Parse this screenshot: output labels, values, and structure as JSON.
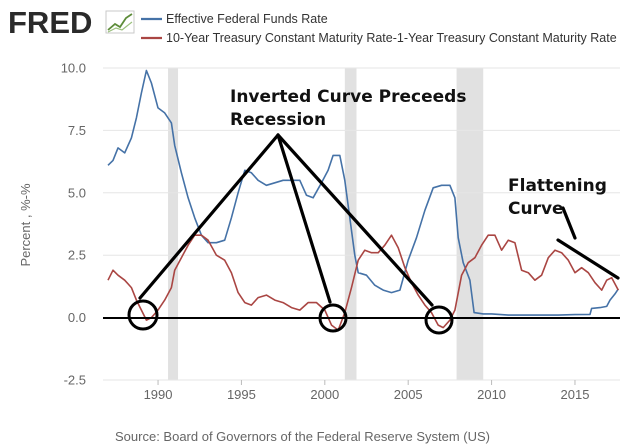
{
  "logo": {
    "text": "FRED"
  },
  "chart_data": {
    "type": "line",
    "title": "",
    "xlabel": "",
    "ylabel": "Percent , %-%",
    "xlim": [
      1986.7,
      2017.7
    ],
    "ylim": [
      -2.5,
      10.0
    ],
    "x_ticks": [
      1990,
      1995,
      2000,
      2005,
      2010,
      2015
    ],
    "y_ticks": [
      "10.0",
      "7.5",
      "5.0",
      "2.5",
      "0.0",
      "-2.5"
    ],
    "grid": "horizontal",
    "legend_placement": "top-left",
    "recessions": [
      [
        1990.6,
        1991.2
      ],
      [
        2001.2,
        2001.9
      ],
      [
        2007.9,
        2009.5
      ]
    ],
    "series": [
      {
        "name": "Effective Federal Funds Rate",
        "color": "#4572a7",
        "points": [
          [
            1987.0,
            6.1
          ],
          [
            1987.3,
            6.3
          ],
          [
            1987.6,
            6.8
          ],
          [
            1988.0,
            6.6
          ],
          [
            1988.4,
            7.2
          ],
          [
            1988.7,
            8.0
          ],
          [
            1989.0,
            9.0
          ],
          [
            1989.3,
            9.9
          ],
          [
            1989.6,
            9.4
          ],
          [
            1990.0,
            8.4
          ],
          [
            1990.4,
            8.2
          ],
          [
            1990.8,
            7.8
          ],
          [
            1991.0,
            6.9
          ],
          [
            1991.4,
            5.8
          ],
          [
            1991.8,
            4.8
          ],
          [
            1992.2,
            4.0
          ],
          [
            1992.6,
            3.3
          ],
          [
            1993.0,
            3.0
          ],
          [
            1993.5,
            3.0
          ],
          [
            1994.0,
            3.1
          ],
          [
            1994.4,
            4.0
          ],
          [
            1994.8,
            5.0
          ],
          [
            1995.2,
            5.9
          ],
          [
            1995.6,
            5.8
          ],
          [
            1996.0,
            5.5
          ],
          [
            1996.5,
            5.3
          ],
          [
            1997.0,
            5.4
          ],
          [
            1997.5,
            5.5
          ],
          [
            1998.0,
            5.5
          ],
          [
            1998.5,
            5.5
          ],
          [
            1998.9,
            4.9
          ],
          [
            1999.3,
            4.8
          ],
          [
            1999.8,
            5.4
          ],
          [
            2000.2,
            5.9
          ],
          [
            2000.5,
            6.5
          ],
          [
            2000.9,
            6.5
          ],
          [
            2001.2,
            5.5
          ],
          [
            2001.5,
            4.0
          ],
          [
            2001.8,
            2.5
          ],
          [
            2002.0,
            1.8
          ],
          [
            2002.5,
            1.7
          ],
          [
            2003.0,
            1.3
          ],
          [
            2003.5,
            1.1
          ],
          [
            2004.0,
            1.0
          ],
          [
            2004.5,
            1.1
          ],
          [
            2005.0,
            2.3
          ],
          [
            2005.5,
            3.2
          ],
          [
            2006.0,
            4.3
          ],
          [
            2006.5,
            5.2
          ],
          [
            2007.0,
            5.3
          ],
          [
            2007.5,
            5.3
          ],
          [
            2007.8,
            4.8
          ],
          [
            2008.0,
            3.2
          ],
          [
            2008.3,
            2.2
          ],
          [
            2008.7,
            1.5
          ],
          [
            2008.95,
            0.2
          ],
          [
            2009.5,
            0.15
          ],
          [
            2010.0,
            0.15
          ],
          [
            2011.0,
            0.1
          ],
          [
            2012.0,
            0.1
          ],
          [
            2013.0,
            0.1
          ],
          [
            2014.0,
            0.1
          ],
          [
            2015.0,
            0.12
          ],
          [
            2015.9,
            0.13
          ],
          [
            2016.0,
            0.37
          ],
          [
            2016.5,
            0.4
          ],
          [
            2016.9,
            0.45
          ],
          [
            2017.1,
            0.7
          ],
          [
            2017.4,
            0.95
          ],
          [
            2017.6,
            1.15
          ]
        ]
      },
      {
        "name": "10-Year Treasury Constant Maturity Rate-1-Year Treasury Constant Maturity Rate",
        "color": "#aa4643",
        "points": [
          [
            1987.0,
            1.5
          ],
          [
            1987.3,
            1.9
          ],
          [
            1987.6,
            1.7
          ],
          [
            1988.0,
            1.5
          ],
          [
            1988.4,
            1.2
          ],
          [
            1988.7,
            0.7
          ],
          [
            1989.0,
            0.3
          ],
          [
            1989.3,
            -0.1
          ],
          [
            1989.6,
            0.0
          ],
          [
            1990.0,
            0.3
          ],
          [
            1990.4,
            0.7
          ],
          [
            1990.8,
            1.2
          ],
          [
            1991.0,
            1.9
          ],
          [
            1991.4,
            2.4
          ],
          [
            1991.8,
            2.9
          ],
          [
            1992.2,
            3.3
          ],
          [
            1992.6,
            3.3
          ],
          [
            1993.0,
            3.1
          ],
          [
            1993.5,
            2.5
          ],
          [
            1994.0,
            2.3
          ],
          [
            1994.4,
            1.8
          ],
          [
            1994.8,
            1.0
          ],
          [
            1995.2,
            0.6
          ],
          [
            1995.6,
            0.5
          ],
          [
            1996.0,
            0.8
          ],
          [
            1996.5,
            0.9
          ],
          [
            1997.0,
            0.7
          ],
          [
            1997.5,
            0.6
          ],
          [
            1998.0,
            0.4
          ],
          [
            1998.5,
            0.3
          ],
          [
            1999.0,
            0.6
          ],
          [
            1999.5,
            0.6
          ],
          [
            2000.0,
            0.3
          ],
          [
            2000.4,
            -0.3
          ],
          [
            2000.8,
            -0.5
          ],
          [
            2001.2,
            0.2
          ],
          [
            2001.6,
            1.2
          ],
          [
            2002.0,
            2.3
          ],
          [
            2002.4,
            2.7
          ],
          [
            2002.8,
            2.6
          ],
          [
            2003.2,
            2.6
          ],
          [
            2003.6,
            2.9
          ],
          [
            2004.0,
            3.3
          ],
          [
            2004.4,
            2.8
          ],
          [
            2004.8,
            2.0
          ],
          [
            2005.2,
            1.4
          ],
          [
            2005.6,
            0.9
          ],
          [
            2006.0,
            0.5
          ],
          [
            2006.4,
            0.2
          ],
          [
            2006.8,
            -0.3
          ],
          [
            2007.1,
            -0.4
          ],
          [
            2007.5,
            -0.1
          ],
          [
            2007.8,
            0.3
          ],
          [
            2008.2,
            1.7
          ],
          [
            2008.6,
            2.2
          ],
          [
            2009.0,
            2.4
          ],
          [
            2009.4,
            2.9
          ],
          [
            2009.8,
            3.3
          ],
          [
            2010.2,
            3.3
          ],
          [
            2010.6,
            2.7
          ],
          [
            2011.0,
            3.1
          ],
          [
            2011.4,
            3.0
          ],
          [
            2011.8,
            1.9
          ],
          [
            2012.2,
            1.8
          ],
          [
            2012.6,
            1.5
          ],
          [
            2013.0,
            1.7
          ],
          [
            2013.4,
            2.4
          ],
          [
            2013.8,
            2.7
          ],
          [
            2014.2,
            2.6
          ],
          [
            2014.6,
            2.3
          ],
          [
            2015.0,
            1.8
          ],
          [
            2015.4,
            2.0
          ],
          [
            2015.8,
            1.8
          ],
          [
            2016.2,
            1.4
          ],
          [
            2016.6,
            1.1
          ],
          [
            2016.9,
            1.5
          ],
          [
            2017.2,
            1.6
          ],
          [
            2017.6,
            1.1
          ]
        ]
      }
    ],
    "annotations": [
      {
        "text_lines": [
          "Inverted Curve Preceeds",
          "Recession"
        ]
      },
      {
        "text_lines": [
          "Flattening",
          "Curve"
        ]
      }
    ]
  },
  "source": {
    "text": "Source: Board of Governors of the Federal Reserve System (US)"
  }
}
